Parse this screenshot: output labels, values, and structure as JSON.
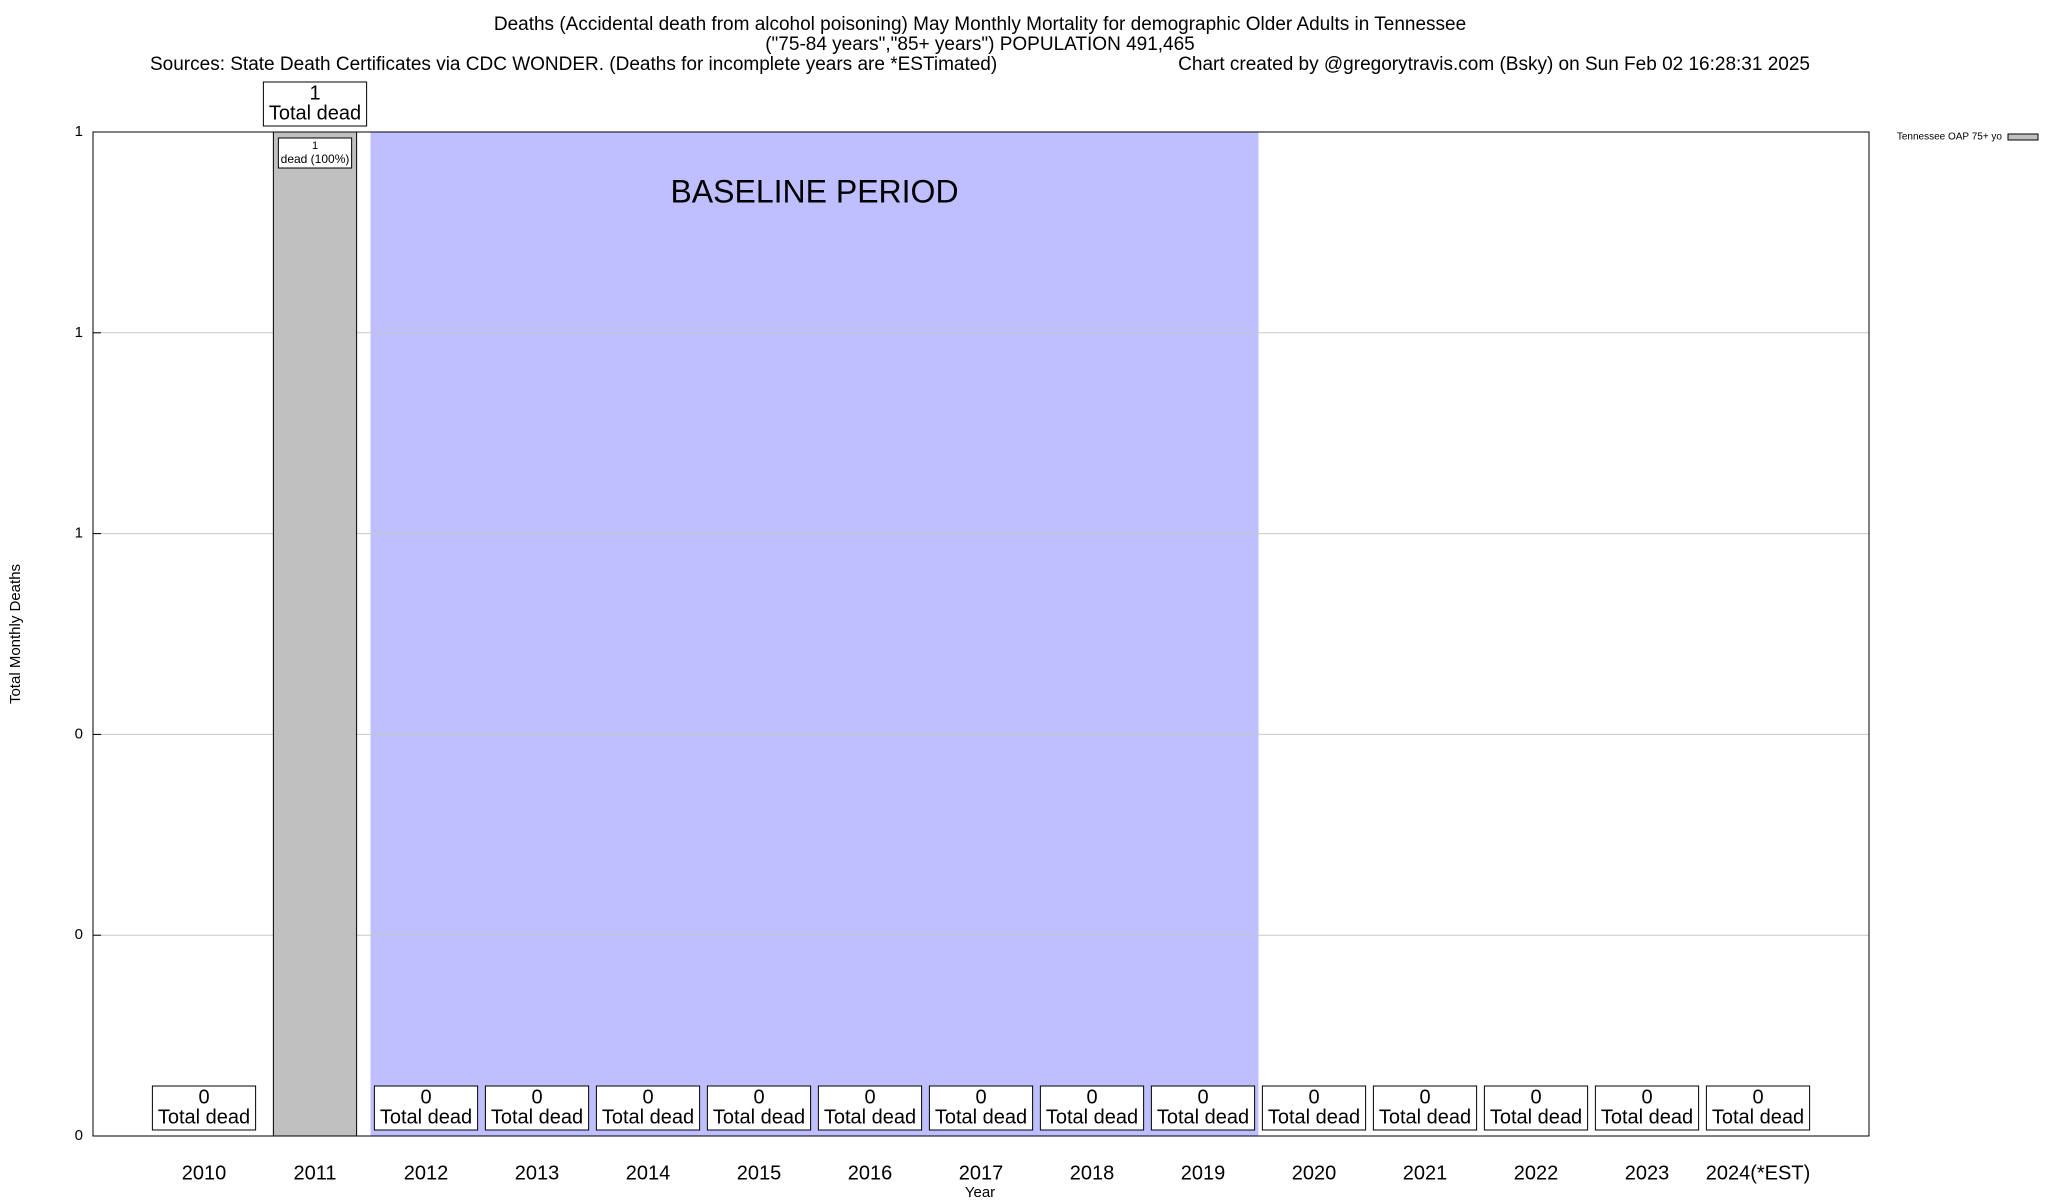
{
  "chart_data": {
    "type": "bar",
    "title": "Deaths (Accidental death from alcohol poisoning) May Monthly Mortality for demographic Older Adults in Tennessee",
    "subtitle": "(\"75-84 years\",\"85+ years\") POPULATION 491,465",
    "source": "Sources: State Death Certificates via CDC WONDER. (Deaths for incomplete years are *ESTimated)",
    "credit": "Chart created by @gregorytravis.com (Bsky) on Sun Feb 02 16:28:31 2025",
    "x_label": "Year",
    "y_label": "Total Monthly Deaths",
    "categories": [
      "2010",
      "2011",
      "2012",
      "2013",
      "2014",
      "2015",
      "2016",
      "2017",
      "2018",
      "2019",
      "2020",
      "2021",
      "2022",
      "2023",
      "2024(*EST)"
    ],
    "series": [
      {
        "name": "Tennessee OAP 75+ yo",
        "color": "#c0c0c0",
        "values": [
          0,
          1,
          0,
          0,
          0,
          0,
          0,
          0,
          0,
          0,
          0,
          0,
          0,
          0,
          0
        ]
      }
    ],
    "value_caption": "Total dead",
    "inner_labels": [
      null,
      "dead (100%)",
      null,
      null,
      null,
      null,
      null,
      null,
      null,
      null,
      null,
      null,
      null,
      null,
      null
    ],
    "baseline": {
      "label": "BASELINE PERIOD",
      "start": "2012",
      "end": "2019",
      "color": "#bfbfff"
    },
    "ylim": [
      0,
      1
    ],
    "yticks": [
      0,
      {
        "value": 0.2,
        "label": "0"
      },
      {
        "value": 0.4,
        "label": "0"
      },
      {
        "value": 0.6,
        "label": "1"
      },
      {
        "value": 0.8,
        "label": "1"
      },
      1
    ],
    "grid": true,
    "legend": "top-right"
  }
}
